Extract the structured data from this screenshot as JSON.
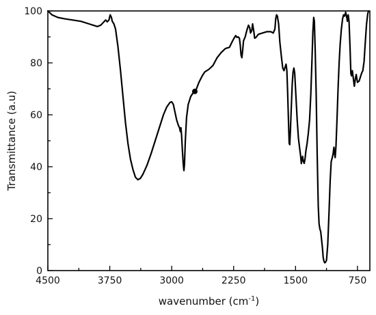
{
  "chart_data": {
    "type": "line",
    "xlabel": "wavenumber (cm",
    "xlabel_sup": "-1",
    "xlabel_close": ")",
    "ylabel": "Transmittance (a.u)",
    "xlim": [
      4500,
      600
    ],
    "ylim": [
      0,
      100
    ],
    "x_reversed": true,
    "x_ticks": [
      4500,
      3750,
      3000,
      2250,
      1500,
      750
    ],
    "x_minor_ticks": [
      4125,
      3375,
      2625,
      1875,
      1125
    ],
    "y_ticks": [
      0,
      20,
      40,
      60,
      80,
      100
    ],
    "y_minor_ticks": [
      10,
      30,
      50,
      70,
      90
    ],
    "grid": false,
    "marker_point": {
      "x": 2720,
      "y": 69
    },
    "series": [
      {
        "color": "#000000",
        "points": [
          [
            4500,
            100
          ],
          [
            4450,
            98.5
          ],
          [
            4380,
            97.5
          ],
          [
            4300,
            97
          ],
          [
            4200,
            96.5
          ],
          [
            4100,
            96
          ],
          [
            4000,
            95
          ],
          [
            3950,
            94.5
          ],
          [
            3900,
            94
          ],
          [
            3860,
            94.5
          ],
          [
            3830,
            95.5
          ],
          [
            3800,
            96.5
          ],
          [
            3780,
            95.8
          ],
          [
            3760,
            96.5
          ],
          [
            3745,
            98.5
          ],
          [
            3730,
            97.5
          ],
          [
            3720,
            96
          ],
          [
            3700,
            95
          ],
          [
            3680,
            93
          ],
          [
            3650,
            86
          ],
          [
            3620,
            77
          ],
          [
            3590,
            67
          ],
          [
            3560,
            57
          ],
          [
            3530,
            49
          ],
          [
            3500,
            43
          ],
          [
            3470,
            39
          ],
          [
            3440,
            36
          ],
          [
            3410,
            35
          ],
          [
            3380,
            35.5
          ],
          [
            3350,
            37
          ],
          [
            3300,
            40.5
          ],
          [
            3250,
            45
          ],
          [
            3200,
            50
          ],
          [
            3150,
            55
          ],
          [
            3100,
            60
          ],
          [
            3060,
            63
          ],
          [
            3020,
            64.8
          ],
          [
            3000,
            65
          ],
          [
            2980,
            64
          ],
          [
            2960,
            61
          ],
          [
            2940,
            58
          ],
          [
            2920,
            56
          ],
          [
            2905,
            55
          ],
          [
            2895,
            53.5
          ],
          [
            2888,
            55
          ],
          [
            2880,
            52
          ],
          [
            2870,
            46
          ],
          [
            2860,
            41
          ],
          [
            2852,
            38.5
          ],
          [
            2845,
            41
          ],
          [
            2835,
            50
          ],
          [
            2820,
            59
          ],
          [
            2800,
            64
          ],
          [
            2770,
            67
          ],
          [
            2740,
            68.5
          ],
          [
            2720,
            69
          ],
          [
            2700,
            70
          ],
          [
            2670,
            72.5
          ],
          [
            2630,
            75
          ],
          [
            2600,
            76.5
          ],
          [
            2550,
            77.5
          ],
          [
            2500,
            79
          ],
          [
            2450,
            82
          ],
          [
            2400,
            84
          ],
          [
            2350,
            85.5
          ],
          [
            2300,
            86
          ],
          [
            2270,
            88
          ],
          [
            2245,
            89.5
          ],
          [
            2225,
            90.5
          ],
          [
            2210,
            89.8
          ],
          [
            2195,
            90
          ],
          [
            2180,
            89.5
          ],
          [
            2170,
            87
          ],
          [
            2160,
            83
          ],
          [
            2150,
            82
          ],
          [
            2140,
            85
          ],
          [
            2130,
            88.5
          ],
          [
            2110,
            90
          ],
          [
            2090,
            92.5
          ],
          [
            2070,
            94.5
          ],
          [
            2055,
            93.5
          ],
          [
            2045,
            91.5
          ],
          [
            2030,
            92.5
          ],
          [
            2020,
            95
          ],
          [
            2005,
            92
          ],
          [
            1995,
            89.5
          ],
          [
            1980,
            89.8
          ],
          [
            1950,
            91
          ],
          [
            1900,
            91.5
          ],
          [
            1850,
            92
          ],
          [
            1800,
            92
          ],
          [
            1770,
            91.5
          ],
          [
            1750,
            93
          ],
          [
            1740,
            97
          ],
          [
            1730,
            98.5
          ],
          [
            1720,
            98
          ],
          [
            1705,
            95
          ],
          [
            1690,
            88
          ],
          [
            1670,
            82
          ],
          [
            1655,
            78
          ],
          [
            1640,
            77
          ],
          [
            1625,
            78.5
          ],
          [
            1615,
            79.5
          ],
          [
            1605,
            77
          ],
          [
            1595,
            68
          ],
          [
            1585,
            57
          ],
          [
            1577,
            49
          ],
          [
            1570,
            48.5
          ],
          [
            1562,
            54
          ],
          [
            1550,
            64
          ],
          [
            1540,
            72
          ],
          [
            1530,
            76.5
          ],
          [
            1520,
            78
          ],
          [
            1510,
            76
          ],
          [
            1495,
            67
          ],
          [
            1480,
            58
          ],
          [
            1465,
            51
          ],
          [
            1450,
            47
          ],
          [
            1438,
            44
          ],
          [
            1430,
            41.2
          ],
          [
            1422,
            43
          ],
          [
            1415,
            44
          ],
          [
            1405,
            42
          ],
          [
            1395,
            41.3
          ],
          [
            1385,
            43
          ],
          [
            1375,
            46
          ],
          [
            1360,
            49
          ],
          [
            1345,
            53
          ],
          [
            1330,
            58
          ],
          [
            1315,
            68
          ],
          [
            1300,
            82
          ],
          [
            1290,
            92
          ],
          [
            1280,
            97.5
          ],
          [
            1272,
            96
          ],
          [
            1262,
            85
          ],
          [
            1250,
            68
          ],
          [
            1238,
            45
          ],
          [
            1225,
            25
          ],
          [
            1215,
            18
          ],
          [
            1205,
            16
          ],
          [
            1195,
            15
          ],
          [
            1185,
            12
          ],
          [
            1175,
            9
          ],
          [
            1165,
            5
          ],
          [
            1155,
            3.5
          ],
          [
            1145,
            3
          ],
          [
            1135,
            3.3
          ],
          [
            1125,
            4
          ],
          [
            1110,
            10
          ],
          [
            1095,
            22
          ],
          [
            1080,
            35
          ],
          [
            1068,
            42
          ],
          [
            1055,
            43.5
          ],
          [
            1045,
            45
          ],
          [
            1035,
            47.5
          ],
          [
            1028,
            45
          ],
          [
            1020,
            43.5
          ],
          [
            1010,
            48
          ],
          [
            998,
            58
          ],
          [
            985,
            70
          ],
          [
            972,
            80
          ],
          [
            960,
            87
          ],
          [
            945,
            93
          ],
          [
            930,
            97
          ],
          [
            918,
            98.5
          ],
          [
            905,
            98
          ],
          [
            893,
            99.5
          ],
          [
            882,
            98
          ],
          [
            872,
            96
          ],
          [
            862,
            98.5
          ],
          [
            852,
            96
          ],
          [
            840,
            86
          ],
          [
            830,
            76
          ],
          [
            822,
            75
          ],
          [
            812,
            77
          ],
          [
            800,
            74
          ],
          [
            788,
            71
          ],
          [
            775,
            74
          ],
          [
            765,
            75.5
          ],
          [
            750,
            72.5
          ],
          [
            730,
            73
          ],
          [
            715,
            74.5
          ],
          [
            700,
            76
          ],
          [
            685,
            77
          ],
          [
            670,
            80.5
          ],
          [
            655,
            88
          ],
          [
            640,
            95
          ],
          [
            625,
            99
          ],
          [
            615,
            100.5
          ]
        ]
      }
    ]
  }
}
